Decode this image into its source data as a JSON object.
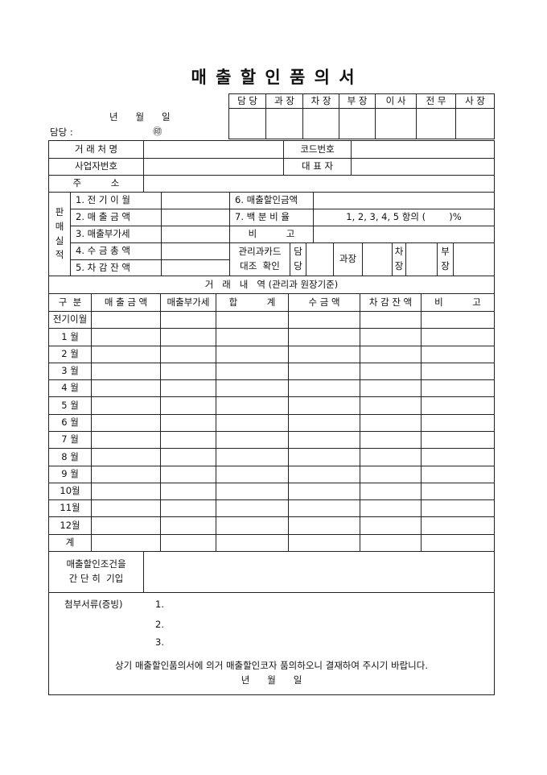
{
  "title": "매 출 할 인 품 의 서",
  "approval": {
    "headers": [
      "담 당",
      "과 장",
      "차 장",
      "부 장",
      "이 사",
      "전 무",
      "사 장"
    ]
  },
  "date_line": "년      월      일",
  "manager_label": "담당 :",
  "seal_mark": "㊞",
  "info": {
    "trade_name_label": "거 래 처 명",
    "code_label": "코드번호",
    "biz_no_label": "사업자번호",
    "rep_label": "대 표 자",
    "address_label": "주          소"
  },
  "sales": {
    "side_label": "판\n매\n실\n적",
    "items_left": [
      "1. 전 기 이 월",
      "2. 매 출 금 액",
      "3. 매출부가세",
      "4. 수 금 총 액",
      "5. 차 감 잔 액"
    ],
    "discount_label": "6. 매출할인금액",
    "percent_label": "7. 백 분 비 율",
    "percent_text": "1, 2, 3, 4, 5 항의 (        )%",
    "remark_label": "비          고",
    "card_check_label": "관리과카드\n대조  확인",
    "sign_manager": "담\n당",
    "sign_section": "과장",
    "sign_deputy": "차\n장",
    "sign_dept": "부\n장"
  },
  "transactions": {
    "title": "거   래   내   역 (관리과 원장기준)",
    "headers": [
      "구  분",
      "매 출 금 액",
      "매출부가세",
      "합          계",
      "수 금 액",
      "차 감 잔 액",
      "비          고"
    ],
    "rows": [
      "전기이월",
      "1 월",
      "2 월",
      "3 월",
      "4 월",
      "5 월",
      "6 월",
      "7 월",
      "8 월",
      "9 월",
      "10월",
      "11월",
      "12월",
      "계"
    ]
  },
  "conditions_label": "매출할인조건을\n간 단 히  기입",
  "attachments": {
    "label": "첨부서류(증빙)",
    "items": [
      "1.",
      "2.",
      "3."
    ],
    "statement": "상기 매출할인품의서에 의거 매출할인코자 품의하오니 결재하여 주시기 바랍니다.",
    "date": "년      월      일"
  }
}
